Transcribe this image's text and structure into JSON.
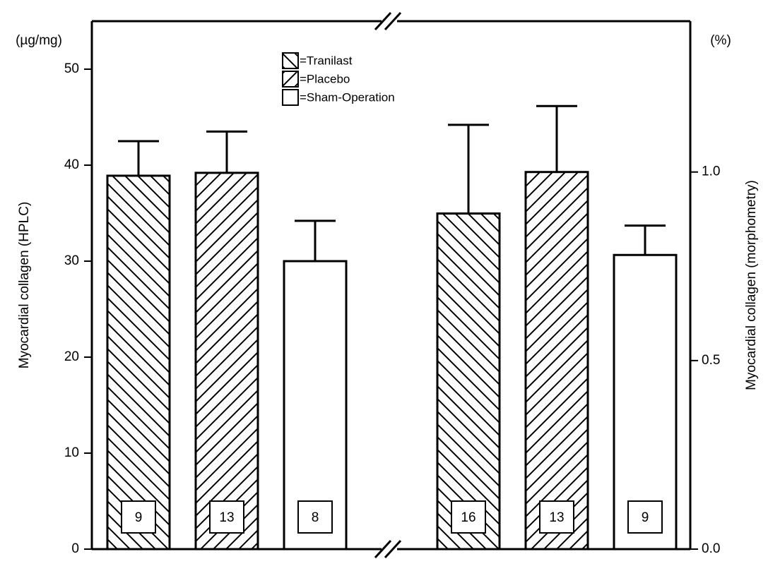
{
  "chart_data": [
    {
      "type": "bar",
      "y_unit": "(µg/mg)",
      "ylabel": "Myocardial collagen (HPLC)",
      "ylim": [
        0,
        55
      ],
      "yticks": [
        0,
        10,
        20,
        30,
        40,
        50
      ],
      "legend": "top-center",
      "series": [
        {
          "name": "=Tranilast",
          "hatch": "back",
          "color": "#000000",
          "values": [
            38.9
          ],
          "errors": [
            3.6
          ],
          "n": [
            9
          ]
        },
        {
          "name": "=Placebo",
          "hatch": "forward",
          "color": "#000000",
          "values": [
            39.2
          ],
          "errors": [
            4.3
          ],
          "n": [
            13
          ]
        },
        {
          "name": "=Sham-Operation",
          "hatch": "none",
          "color": "#000000",
          "values": [
            30.0
          ],
          "errors": [
            4.2
          ],
          "n": [
            8
          ]
        }
      ]
    },
    {
      "type": "bar",
      "y2_unit": "(%)",
      "y2label": "Myocardial collagen (morphometry)",
      "y2lim": [
        0,
        1.4
      ],
      "y2ticks": [
        {
          "value": 0,
          "label": "0.0"
        },
        {
          "value": 0.5,
          "label": "0.5"
        },
        {
          "value": 1,
          "label": "1.0"
        }
      ],
      "series": [
        {
          "axis": "y2",
          "hatch": "back",
          "color": "#000000",
          "values": [
            0.89
          ],
          "errors": [
            0.235
          ],
          "n": [
            16
          ]
        },
        {
          "axis": "y2",
          "hatch": "forward",
          "color": "#000000",
          "values": [
            1.0
          ],
          "errors": [
            0.175
          ],
          "n": [
            13
          ]
        },
        {
          "axis": "y2",
          "hatch": "none",
          "color": "#000000",
          "values": [
            0.78
          ],
          "errors": [
            0.078
          ],
          "n": [
            9
          ]
        }
      ]
    }
  ]
}
